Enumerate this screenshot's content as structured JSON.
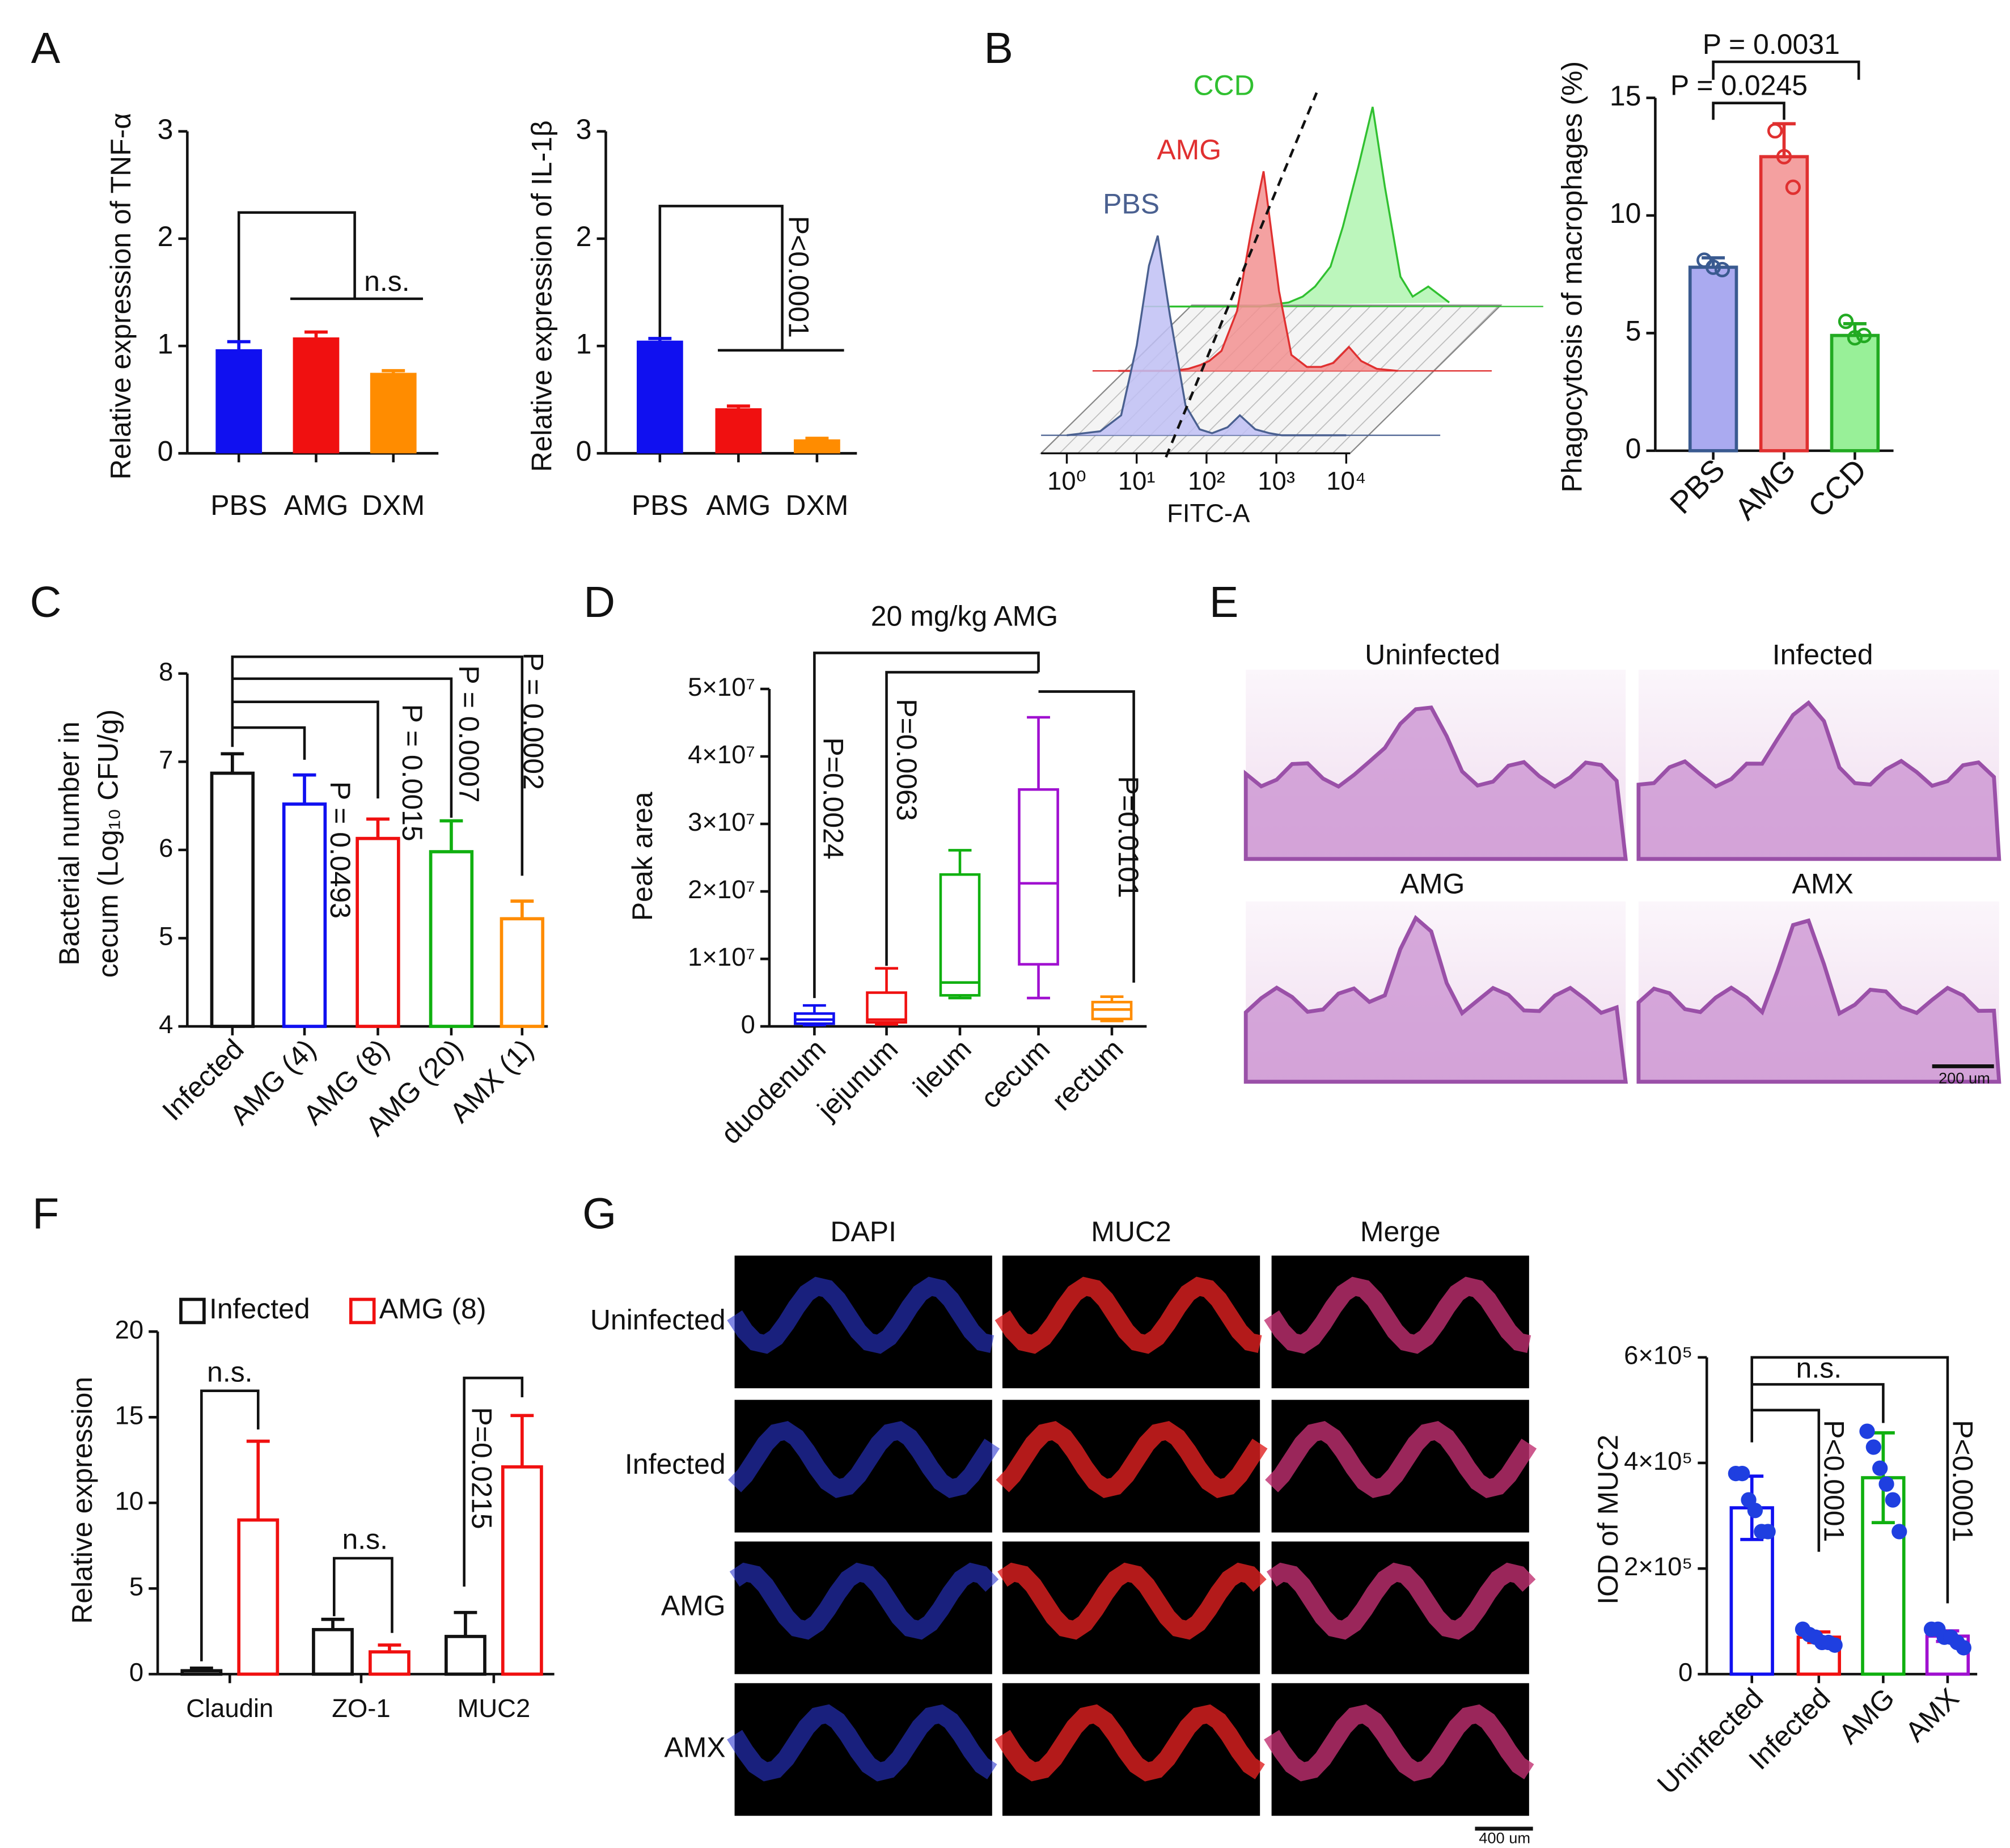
{
  "panel_labels": [
    "A",
    "B",
    "C",
    "D",
    "E",
    "F",
    "G"
  ],
  "histology": {
    "titles": [
      "Uninfected",
      "Infected",
      "AMG",
      "AMX"
    ],
    "scale_bar": "200 um"
  },
  "immunofluorescence": {
    "columns": [
      "DAPI",
      "MUC2",
      "Merge"
    ],
    "rows": [
      "Uninfected",
      "Infected",
      "AMG",
      "AMX"
    ],
    "scale_bar": "400 um"
  },
  "chart_data": [
    {
      "type": "bar",
      "style": "filled",
      "ylabel": "Relative expression of TNF-α",
      "categories": [
        "PBS",
        "AMG",
        "DXM"
      ],
      "values": [
        0.97,
        1.08,
        0.75
      ],
      "errors": [
        0.07,
        0.05,
        0.02
      ],
      "colors": [
        "#1010f0",
        "#f01010",
        "#ff8c00"
      ],
      "ylim": [
        0,
        3
      ],
      "yticks": [
        0,
        1,
        2,
        3
      ],
      "annotations": [
        "n.s."
      ]
    },
    {
      "type": "bar",
      "style": "filled",
      "ylabel": "Relative expression of IL-1β",
      "categories": [
        "PBS",
        "AMG",
        "DXM"
      ],
      "values": [
        1.05,
        0.42,
        0.13
      ],
      "errors": [
        0.02,
        0.02,
        0.01
      ],
      "colors": [
        "#1010f0",
        "#f01010",
        "#ff8c00"
      ],
      "ylim": [
        0,
        3
      ],
      "yticks": [
        0,
        1,
        2,
        3
      ],
      "annotations": [
        "P<0.0001"
      ]
    },
    {
      "type": "flow",
      "xlabel": "FITC-A",
      "xscale": "log",
      "xlim": [
        1,
        10000
      ],
      "xticks": [
        {
          "value": 1,
          "label": "10⁰"
        },
        {
          "value": 10,
          "label": "10¹"
        },
        {
          "value": 100,
          "label": "10²"
        },
        {
          "value": 1000,
          "label": "10³"
        },
        {
          "value": 10000,
          "label": "10⁴"
        }
      ],
      "x": [
        1,
        3,
        6,
        10,
        15,
        20,
        30,
        50,
        80,
        120,
        200,
        300,
        500,
        800,
        1200,
        2000,
        3000,
        5000,
        10000
      ],
      "series": [
        {
          "name": "PBS",
          "color": "#4a6090",
          "fill": "#c0c0f4",
          "values": [
            0,
            2,
            10,
            45,
            85,
            100,
            60,
            15,
            3,
            1,
            4,
            10,
            3,
            1,
            0,
            0,
            0,
            0,
            0
          ]
        },
        {
          "name": "AMG",
          "color": "#e03030",
          "fill": "#f29090",
          "values": [
            0,
            0,
            0,
            1,
            3,
            5,
            10,
            30,
            70,
            100,
            40,
            8,
            2,
            2,
            4,
            12,
            5,
            1,
            0
          ]
        },
        {
          "name": "CCD",
          "color": "#30c030",
          "fill": "#b0f4b0",
          "values": [
            0,
            0,
            0,
            0,
            0,
            0,
            1,
            2,
            5,
            10,
            20,
            40,
            70,
            100,
            60,
            15,
            5,
            10,
            2
          ]
        }
      ]
    },
    {
      "type": "bar",
      "style": "light",
      "ylabel": "Phagocytosis of macrophages (%)",
      "categories": [
        "PBS",
        "AMG",
        "CCD"
      ],
      "values": [
        7.8,
        12.5,
        4.9
      ],
      "errors": [
        0.4,
        1.4,
        0.5
      ],
      "points": [
        [
          8.1,
          7.8,
          7.7
        ],
        [
          13.6,
          12.5,
          11.2
        ],
        [
          5.5,
          4.8,
          4.9
        ]
      ],
      "colors": [
        "#3a5a90",
        "#e03030",
        "#22aa22"
      ],
      "fill_colors": [
        "#aaaaf0",
        "#f4a0a0",
        "#98f098"
      ],
      "ylim": [
        0,
        15
      ],
      "yticks": [
        0,
        5,
        10,
        15
      ],
      "annotations": [
        "P = 0.0031",
        "P = 0.0245"
      ]
    },
    {
      "type": "bar",
      "style": "outline",
      "ylabel": [
        "Bacterial number in",
        "cecum (Log₁₀ CFU/g)"
      ],
      "categories": [
        "Infected",
        "AMG (4)",
        "AMG (8)",
        "AMG (20)",
        "AMX (1)"
      ],
      "values": [
        6.87,
        6.52,
        6.13,
        5.98,
        5.22
      ],
      "errors": [
        0.22,
        0.33,
        0.22,
        0.35,
        0.2
      ],
      "colors": [
        "#111111",
        "#1010f0",
        "#f01010",
        "#10b010",
        "#ff8c00"
      ],
      "ylim": [
        4,
        8
      ],
      "yticks": [
        4,
        5,
        6,
        7,
        8
      ],
      "annotations": [
        "P = 0.0493",
        "P = 0.0015",
        "P = 0.0007",
        "P = 0.0002"
      ]
    },
    {
      "type": "box",
      "title": "20 mg/kg AMG",
      "ylabel": "Peak area",
      "categories": [
        "duodenum",
        "jejunum",
        "ileum",
        "cecum",
        "rectum"
      ],
      "boxes": [
        {
          "min": 200000,
          "q1": 400000,
          "median": 1000000,
          "q3": 1900000,
          "max": 3100000
        },
        {
          "min": 300000,
          "q1": 600000,
          "median": 1000000,
          "q3": 5000000,
          "max": 8600000
        },
        {
          "min": 4200000,
          "q1": 4600000,
          "median": 6500000,
          "q3": 22500000,
          "max": 26100000
        },
        {
          "min": 4200000,
          "q1": 9200000,
          "median": 21200000,
          "q3": 35100000,
          "max": 45800000
        },
        {
          "min": 800000,
          "q1": 1100000,
          "median": 2500000,
          "q3": 3600000,
          "max": 4400000
        }
      ],
      "colors": [
        "#1010f0",
        "#f01010",
        "#10b010",
        "#a010d0",
        "#ff8c00"
      ],
      "ylim": [
        0,
        50000000
      ],
      "yticks": [
        0,
        {
          "value": 10000000,
          "label": "1×10⁷"
        },
        {
          "value": 20000000,
          "label": "2×10⁷"
        },
        {
          "value": 30000000,
          "label": "3×10⁷"
        },
        {
          "value": 40000000,
          "label": "4×10⁷"
        },
        {
          "value": 50000000,
          "label": "5×10⁷"
        }
      ],
      "annotations": [
        "P=0.0024",
        "P=0.0063",
        "P=0.0101"
      ]
    },
    {
      "type": "grouped_bar",
      "ylabel": "Relative expression",
      "categories": [
        "Claudin",
        "ZO-1",
        "MUC2"
      ],
      "series": [
        {
          "name": "Infected",
          "color": "#111111",
          "values": [
            0.2,
            2.6,
            2.2
          ],
          "errors": [
            0.15,
            0.6,
            1.4
          ]
        },
        {
          "name": "AMG (8)",
          "color": "#f01010",
          "values": [
            9.0,
            1.3,
            12.1
          ],
          "errors": [
            4.6,
            0.4,
            3.0
          ]
        }
      ],
      "ylim": [
        0,
        20
      ],
      "yticks": [
        0,
        5,
        10,
        15,
        20
      ],
      "annotations": [
        "n.s.",
        "n.s.",
        "P=0.0215"
      ]
    },
    {
      "type": "bar",
      "style": "outline",
      "ylabel": "IOD of MUC2",
      "categories": [
        "Uninfected",
        "Infected",
        "AMG",
        "AMX"
      ],
      "values": [
        315000,
        70000,
        372000,
        72000
      ],
      "errors": [
        60000,
        10000,
        85000,
        10000
      ],
      "points": [
        [
          380000,
          380000,
          330000,
          310000,
          270000,
          270000
        ],
        [
          85000,
          75000,
          70000,
          60000,
          60000,
          55000
        ],
        [
          460000,
          430000,
          390000,
          360000,
          330000,
          270000
        ],
        [
          85000,
          85000,
          70000,
          70000,
          60000,
          50000
        ]
      ],
      "point_color": "#1f3fe0",
      "colors": [
        "#1010f0",
        "#f01010",
        "#10b010",
        "#a010d0"
      ],
      "ylim": [
        0,
        600000
      ],
      "yticks": [
        0,
        {
          "value": 200000,
          "label": "2×10⁵"
        },
        {
          "value": 400000,
          "label": "4×10⁵"
        },
        {
          "value": 600000,
          "label": "6×10⁵"
        }
      ],
      "annotations": [
        "n.s.",
        "P<0.0001",
        "P<0.0001"
      ]
    }
  ]
}
